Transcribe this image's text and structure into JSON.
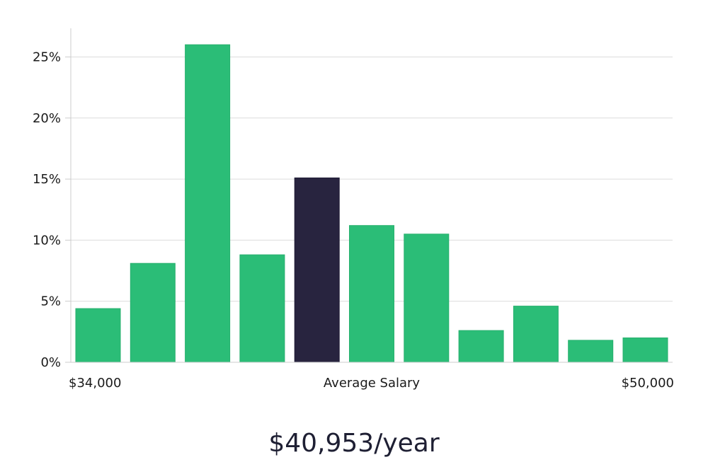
{
  "chart_data": {
    "type": "bar",
    "title": "",
    "xlabel": "Average Salary",
    "ylabel": "",
    "x_range_labels": {
      "min": "$34,000",
      "max": "$50,000"
    },
    "ylim": [
      0,
      27
    ],
    "yticks": [
      {
        "value": 0,
        "label": "0%"
      },
      {
        "value": 5,
        "label": "5%"
      },
      {
        "value": 10,
        "label": "10%"
      },
      {
        "value": 15,
        "label": "15%"
      },
      {
        "value": 20,
        "label": "20%"
      },
      {
        "value": 25,
        "label": "25%"
      }
    ],
    "values": [
      4.4,
      8.1,
      26.0,
      8.8,
      15.1,
      11.2,
      10.5,
      2.6,
      4.6,
      1.8,
      2.0
    ],
    "highlight_index": 4,
    "grid": true,
    "colors": {
      "bar": "#2bbd77",
      "highlight": "#28243f",
      "grid": "#dcdcdc",
      "axis": "#cccccc"
    }
  },
  "summary": {
    "salary": "$40,953/year"
  }
}
